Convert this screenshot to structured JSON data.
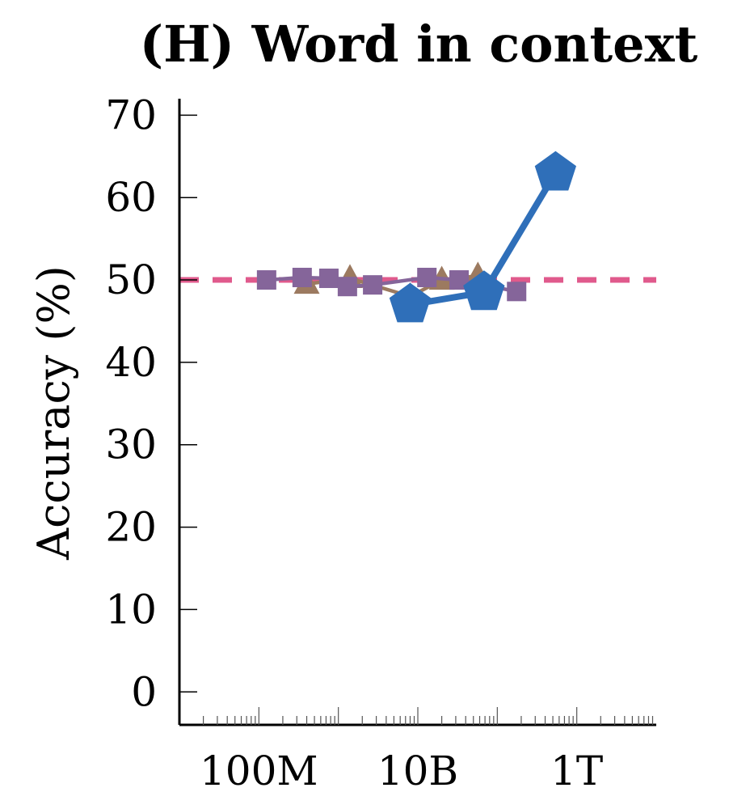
{
  "chart_data": {
    "type": "line",
    "title": "(H) Word in context",
    "ylabel": "Accuracy (%)",
    "xlabel": "",
    "x_scale": "log",
    "xlim": [
      10000000,
      10000000000000
    ],
    "ylim": [
      -4,
      72
    ],
    "x_tick_values": [
      100000000,
      10000000000,
      1000000000000
    ],
    "x_tick_labels": [
      "100M",
      "10B",
      "1T"
    ],
    "y_tick_values": [
      0,
      10,
      20,
      30,
      40,
      50,
      60,
      70
    ],
    "y_tick_labels": [
      "0",
      "10",
      "20",
      "30",
      "40",
      "50",
      "60",
      "70"
    ],
    "grid": false,
    "legend": "none",
    "reference_line": {
      "y": 50,
      "style": "dashed",
      "color": "#e05a8c"
    },
    "series": [
      {
        "marker": "pentagon",
        "color": "#2f6fb9",
        "x": [
          8000000000,
          68000000000,
          540000000000
        ],
        "y": [
          47,
          48.5,
          63
        ]
      },
      {
        "marker": "triangle",
        "color": "#9c7a60",
        "x": [
          400000000,
          1400000000,
          8000000000,
          20000000000,
          57000000000
        ],
        "y": [
          49.5,
          50.2,
          48,
          50,
          50.5
        ]
      },
      {
        "marker": "square",
        "color": "#85659a",
        "x": [
          125000000,
          350000000,
          760000000,
          1300000000,
          2700000000,
          13000000000,
          33000000000,
          175000000000
        ],
        "y": [
          50,
          50.3,
          50.2,
          49.2,
          49.4,
          50.3,
          50,
          48.6
        ]
      }
    ]
  }
}
